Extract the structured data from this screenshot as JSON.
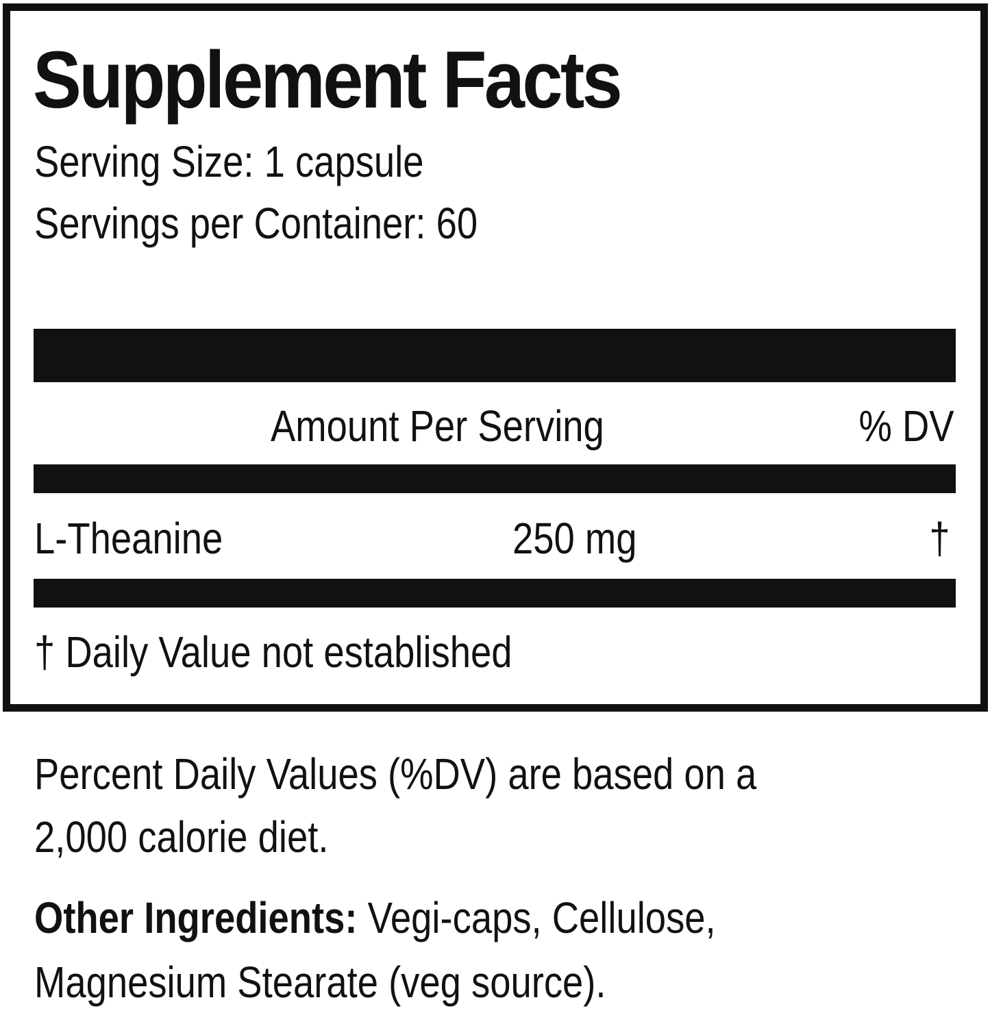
{
  "title": "Supplement Facts",
  "serving_size": "Serving Size: 1 capsule",
  "servings_per_container": "Servings per Container: 60",
  "header": {
    "amount": "Amount Per Serving",
    "dv": "% DV"
  },
  "rows": [
    {
      "name": "L-Theanine",
      "amount": "250 mg",
      "dv": "†"
    }
  ],
  "footnote": "† Daily Value not established",
  "note_line1": "Percent Daily Values (%DV) are based on a",
  "note_line2": "2,000 calorie diet.",
  "other_label": "Other Ingredients:",
  "other_line1": " Vegi-caps, Cellulose,",
  "other_line2": "Magnesium Stearate (veg source)."
}
